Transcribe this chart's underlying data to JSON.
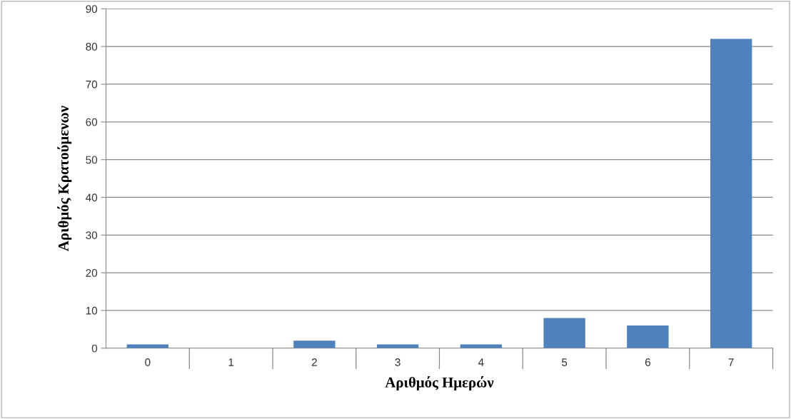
{
  "chart_data": {
    "type": "bar",
    "xlabel": "Αριθμός Ημερών",
    "ylabel": "Αριθμός Κρατούμενων",
    "categories": [
      "0",
      "1",
      "2",
      "3",
      "4",
      "5",
      "6",
      "7"
    ],
    "values": [
      1,
      0,
      2,
      1,
      1,
      8,
      6,
      82
    ],
    "color": "#4f81bd",
    "ylim": [
      0,
      90
    ],
    "yticks": [
      0,
      10,
      20,
      30,
      40,
      50,
      60,
      70,
      80,
      90
    ],
    "grid": "y",
    "legend": false
  }
}
